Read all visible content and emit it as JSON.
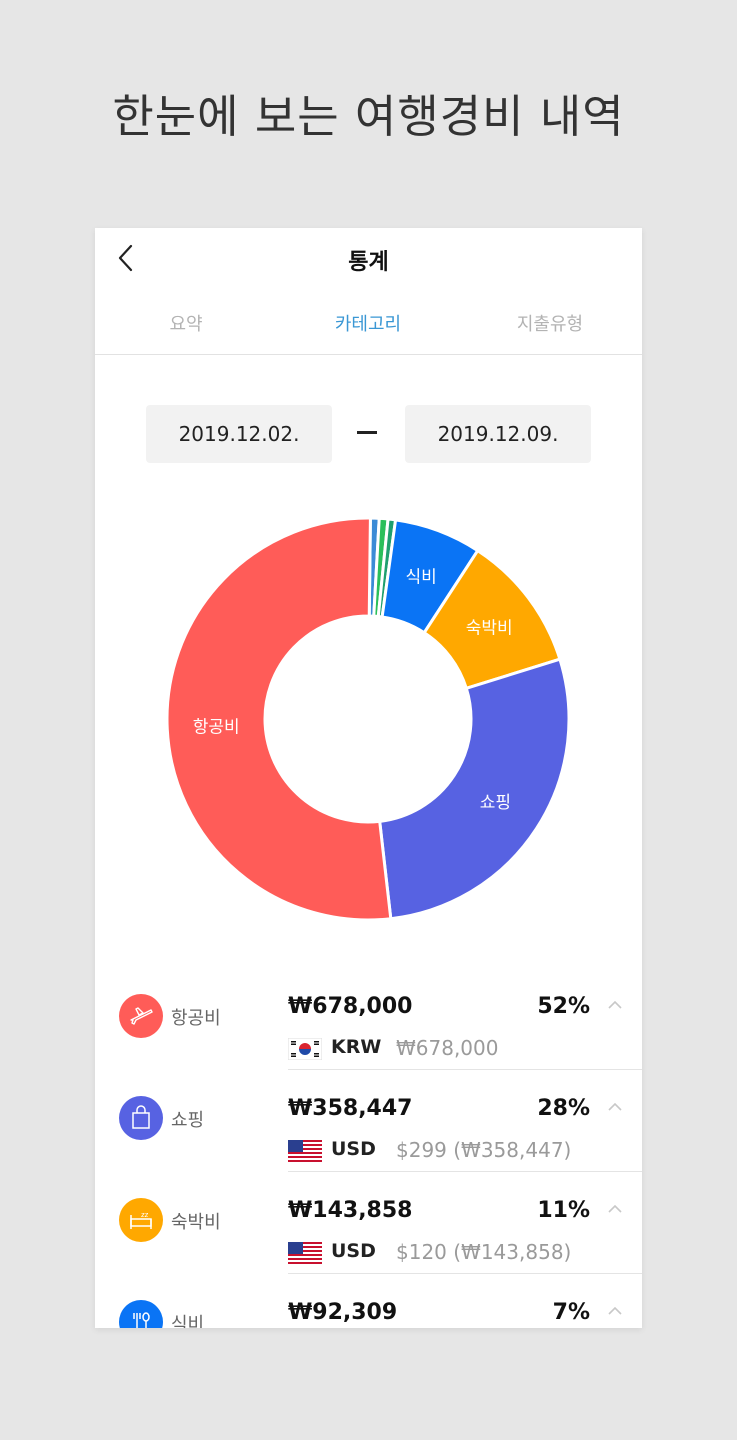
{
  "headline": "한눈에 보는 여행경비 내역",
  "nav": {
    "title": "통계"
  },
  "tabs": [
    {
      "label": "요약"
    },
    {
      "label": "카테고리"
    },
    {
      "label": "지출유형"
    }
  ],
  "date_range": {
    "start": "2019.12.02.",
    "end": "2019.12.09."
  },
  "colors": {
    "airfare": "#ff5c58",
    "shopping": "#5762e2",
    "lodging": "#ffa800",
    "food": "#0a74f5",
    "small_a": "#1f9f6e",
    "small_b": "#2bbf5a",
    "small_c": "#3b8bd6",
    "active_tab": "#3a97d4"
  },
  "chart_data": {
    "type": "pie",
    "donut": true,
    "labels": [
      "항공비",
      "쇼핑",
      "숙박비",
      "식비",
      "",
      "",
      ""
    ],
    "values": [
      52,
      28,
      11,
      7,
      0.6,
      0.7,
      0.7
    ]
  },
  "list": [
    {
      "name": "항공비",
      "icon": "airplane-icon",
      "amount": "₩678,000",
      "pct": "52%",
      "currency": "KRW",
      "flag": "korea-flag-icon",
      "original": "₩678,000"
    },
    {
      "name": "쇼핑",
      "icon": "shopping-bag-icon",
      "amount": "₩358,447",
      "pct": "28%",
      "currency": "USD",
      "flag": "usa-flag-icon",
      "original": "$299 (₩358,447)"
    },
    {
      "name": "숙박비",
      "icon": "bed-icon",
      "amount": "₩143,858",
      "pct": "11%",
      "currency": "USD",
      "flag": "usa-flag-icon",
      "original": "$120 (₩143,858)"
    },
    {
      "name": "식비",
      "icon": "fork-spoon-icon",
      "amount": "₩92,309",
      "pct": "7%",
      "currency": "",
      "flag": "",
      "original": ""
    }
  ]
}
